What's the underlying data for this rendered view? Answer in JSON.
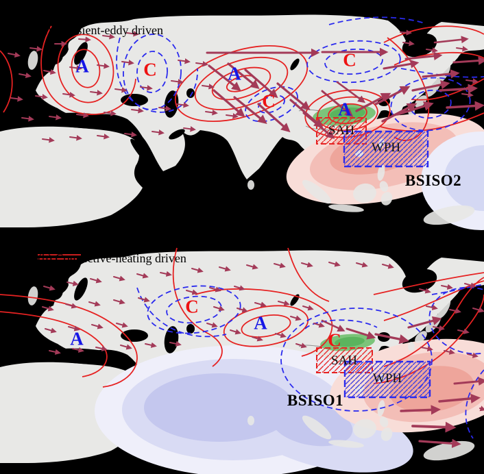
{
  "panels": [
    {
      "title": "(a) Transient-eddy driven",
      "mode_label": "BSISO2",
      "labels": [
        {
          "text": "A"
        },
        {
          "text": "C"
        },
        {
          "text": "A"
        },
        {
          "text": "C"
        },
        {
          "text": "C"
        },
        {
          "text": "A"
        }
      ],
      "boxes": [
        {
          "label": "SAH"
        },
        {
          "label": "WPH"
        }
      ]
    },
    {
      "title": "(b) Convective-heating driven",
      "mode_label": "BSISO1",
      "labels": [
        {
          "text": "A"
        },
        {
          "text": "C"
        },
        {
          "text": "A"
        },
        {
          "text": "C"
        }
      ],
      "boxes": [
        {
          "label": "SAH"
        },
        {
          "label": "WPH"
        }
      ]
    }
  ],
  "colors": {
    "background": "#000000",
    "land": "#e8e8e6",
    "red_contour": "#e62222",
    "blue_contour": "#2a2aee",
    "arrow": "#a33a58",
    "anticyclone_letter": "#1616e6",
    "cyclone_letter": "#ee1212",
    "green_shade": "#7cc47a",
    "warm_shade": "#eea59b",
    "cool_shade": "#c4c7ee",
    "sah_box": "#e62222",
    "wph_box": "#2a2aee"
  }
}
